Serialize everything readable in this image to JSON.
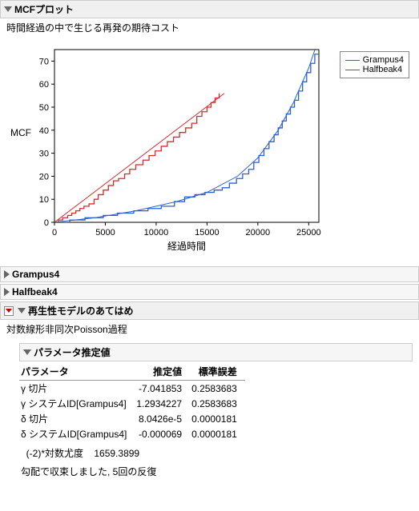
{
  "mcf_section": {
    "title": "MCFプロット",
    "subtitle": "時間経過の中で生じる再発の期待コスト",
    "ylabel": "MCF",
    "xlabel": "経過時間",
    "xlim": [
      0,
      26000
    ],
    "ylim": [
      0,
      75
    ],
    "xticks": [
      0,
      5000,
      10000,
      15000,
      20000,
      25000
    ],
    "yticks": [
      0,
      10,
      20,
      30,
      40,
      50,
      60,
      70
    ],
    "grid_color": "#dddddd",
    "axis_color": "#000000",
    "background_color": "#ffffff",
    "legend": [
      {
        "label": "Grampus4",
        "color": "#d62c2c"
      },
      {
        "label": "Halfbeak4",
        "color": "#2c5fd6"
      }
    ],
    "series": {
      "grampus_fit": {
        "color": "#d62c2c",
        "points": [
          [
            0,
            0
          ],
          [
            16700,
            56
          ]
        ]
      },
      "halfbeak_fit": {
        "color": "#2c5fd6",
        "points": [
          [
            0,
            0
          ],
          [
            4000,
            2
          ],
          [
            8000,
            5
          ],
          [
            12000,
            9
          ],
          [
            15000,
            13
          ],
          [
            18000,
            20
          ],
          [
            20000,
            28
          ],
          [
            22000,
            40
          ],
          [
            23500,
            52
          ],
          [
            25000,
            67
          ],
          [
            26000,
            80
          ]
        ]
      },
      "grampus_step": {
        "color": "#d62c2c",
        "points": [
          [
            0,
            0
          ],
          [
            400,
            0
          ],
          [
            400,
            1
          ],
          [
            800,
            1
          ],
          [
            800,
            2
          ],
          [
            1300,
            2
          ],
          [
            1300,
            3
          ],
          [
            1700,
            3
          ],
          [
            1700,
            4
          ],
          [
            2100,
            4
          ],
          [
            2100,
            5
          ],
          [
            2500,
            5
          ],
          [
            2500,
            6
          ],
          [
            2900,
            6
          ],
          [
            2900,
            7
          ],
          [
            3400,
            7
          ],
          [
            3400,
            8
          ],
          [
            3900,
            8
          ],
          [
            3900,
            10
          ],
          [
            4300,
            10
          ],
          [
            4300,
            12
          ],
          [
            4800,
            12
          ],
          [
            4800,
            14
          ],
          [
            5300,
            14
          ],
          [
            5300,
            16
          ],
          [
            5800,
            16
          ],
          [
            5800,
            18
          ],
          [
            6300,
            18
          ],
          [
            6300,
            19
          ],
          [
            6900,
            19
          ],
          [
            6900,
            21
          ],
          [
            7400,
            21
          ],
          [
            7400,
            23
          ],
          [
            8000,
            23
          ],
          [
            8000,
            25
          ],
          [
            8700,
            25
          ],
          [
            8700,
            27
          ],
          [
            9300,
            27
          ],
          [
            9300,
            29
          ],
          [
            9900,
            29
          ],
          [
            9900,
            31
          ],
          [
            10500,
            31
          ],
          [
            10500,
            33
          ],
          [
            11100,
            33
          ],
          [
            11100,
            35
          ],
          [
            11700,
            35
          ],
          [
            11700,
            37
          ],
          [
            12300,
            37
          ],
          [
            12300,
            39
          ],
          [
            12900,
            39
          ],
          [
            12900,
            41
          ],
          [
            13500,
            41
          ],
          [
            13500,
            43
          ],
          [
            14000,
            43
          ],
          [
            14000,
            46
          ],
          [
            14500,
            46
          ],
          [
            14500,
            48
          ],
          [
            15000,
            48
          ],
          [
            15000,
            50
          ],
          [
            15400,
            50
          ],
          [
            15400,
            52
          ],
          [
            15800,
            52
          ],
          [
            15800,
            54
          ],
          [
            16200,
            54
          ],
          [
            16200,
            56
          ]
        ]
      },
      "halfbeak_step": {
        "color": "#2c5fd6",
        "points": [
          [
            0,
            0
          ],
          [
            1500,
            0
          ],
          [
            1500,
            1
          ],
          [
            3000,
            1
          ],
          [
            3000,
            2
          ],
          [
            4800,
            2
          ],
          [
            4800,
            3
          ],
          [
            6200,
            3
          ],
          [
            6200,
            4
          ],
          [
            7800,
            4
          ],
          [
            7800,
            5
          ],
          [
            9200,
            5
          ],
          [
            9200,
            6
          ],
          [
            10500,
            6
          ],
          [
            10500,
            7
          ],
          [
            11800,
            7
          ],
          [
            11800,
            9
          ],
          [
            12800,
            9
          ],
          [
            12800,
            11
          ],
          [
            13800,
            11
          ],
          [
            13800,
            12
          ],
          [
            14800,
            12
          ],
          [
            14800,
            13
          ],
          [
            15700,
            13
          ],
          [
            15700,
            14
          ],
          [
            16500,
            14
          ],
          [
            16500,
            15
          ],
          [
            17200,
            15
          ],
          [
            17200,
            17
          ],
          [
            17900,
            17
          ],
          [
            17900,
            19
          ],
          [
            18500,
            19
          ],
          [
            18500,
            21
          ],
          [
            19100,
            21
          ],
          [
            19100,
            23
          ],
          [
            19600,
            23
          ],
          [
            19600,
            26
          ],
          [
            20100,
            26
          ],
          [
            20100,
            29
          ],
          [
            20600,
            29
          ],
          [
            20600,
            32
          ],
          [
            21100,
            32
          ],
          [
            21100,
            35
          ],
          [
            21600,
            35
          ],
          [
            21600,
            38
          ],
          [
            22000,
            38
          ],
          [
            22000,
            41
          ],
          [
            22400,
            41
          ],
          [
            22400,
            44
          ],
          [
            22800,
            44
          ],
          [
            22800,
            47
          ],
          [
            23200,
            47
          ],
          [
            23200,
            50
          ],
          [
            23600,
            50
          ],
          [
            23600,
            53
          ],
          [
            24000,
            53
          ],
          [
            24000,
            57
          ],
          [
            24400,
            57
          ],
          [
            24400,
            61
          ],
          [
            24800,
            61
          ],
          [
            24800,
            65
          ],
          [
            25200,
            65
          ],
          [
            25200,
            69
          ],
          [
            25600,
            69
          ],
          [
            25600,
            73
          ],
          [
            26000,
            73
          ]
        ]
      }
    }
  },
  "collapsed": {
    "g4": "Grampus4",
    "h4": "Halfbeak4"
  },
  "fit_section": {
    "title": "再生性モデルのあてはめ",
    "subtitle": "対数線形非同次Poisson過程",
    "param_title": "パラメータ推定値",
    "col_param": "パラメータ",
    "col_est": "推定値",
    "col_se": "標準誤差",
    "rows": [
      {
        "name": "γ 切片",
        "est": "-7.041853",
        "se": "0.2583683"
      },
      {
        "name": "γ システムID[Grampus4]",
        "est": "1.2934227",
        "se": "0.2583683"
      },
      {
        "name": "δ 切片",
        "est": "8.0426e-5",
        "se": "0.0000181"
      },
      {
        "name": "δ システムID[Grampus4]",
        "est": "-0.000069",
        "se": "0.0000181"
      }
    ],
    "loglik_label": "(-2)*対数尤度",
    "loglik_value": "1659.3899",
    "converge_msg": "勾配で収束しました, 5回の反復"
  }
}
